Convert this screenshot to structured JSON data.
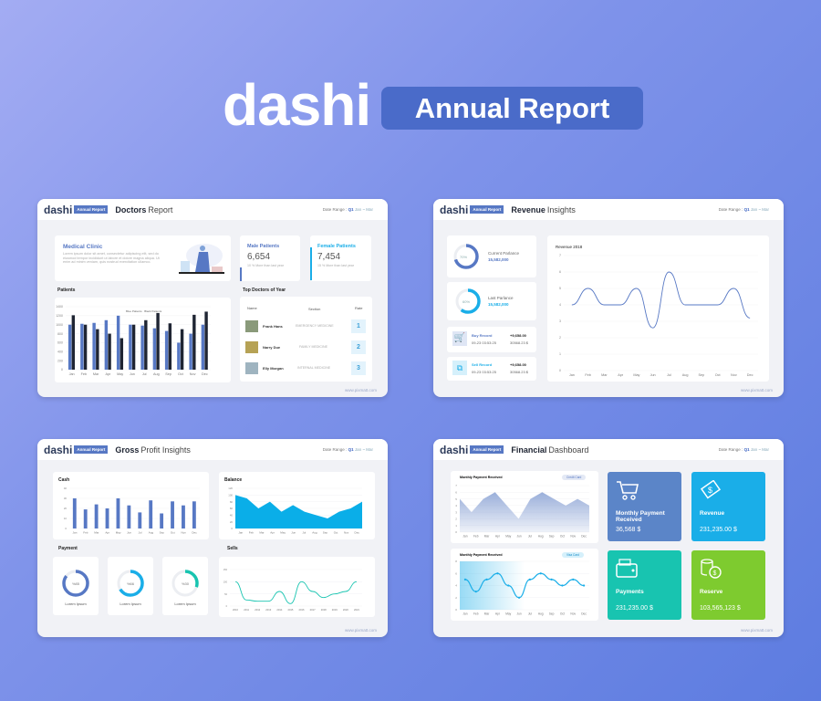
{
  "header": {
    "logo": "dashi",
    "badge": "Annual Report"
  },
  "common": {
    "logo": "dashi",
    "badge": "Annual Report",
    "date_label": "Date Range :",
    "date_q": "Q1",
    "date_span": "Jan ~ Mar",
    "footer": "www.pixmatt.com"
  },
  "colors": {
    "primary": "#5778c4",
    "cyan": "#1aaee8",
    "teal": "#18c4b0",
    "green": "#7ecb2f",
    "dark": "#1f2533"
  },
  "doctors": {
    "title_bold": "Doctors",
    "title_light": "Report",
    "clinic": {
      "title": "Medical Clinic",
      "text": "Lorem ipsum dolor sit amet, consectetur adipiscing elit, sed do eiusmod tempor incididunt ut labore et dolore magna aliqua. Ut enim ad minim veniam, quis nostrud exercitation ullamco."
    },
    "male": {
      "title": "Male Patients",
      "value": "6,654",
      "note": "10 % More than last year"
    },
    "female": {
      "title": "Female Patients",
      "value": "7,454",
      "note": "15 % More than last year"
    },
    "patients_label": "Patients",
    "top_label": "Top Doctors of Year",
    "table_headers": [
      "Name",
      "Section",
      "Rate"
    ],
    "rows": [
      {
        "name": "Frank Hans",
        "section": "EMERGENCY MEDICINE",
        "rate": "1"
      },
      {
        "name": "Narry Due",
        "section": "FAMILY MEDICINE",
        "rate": "2"
      },
      {
        "name": "Elly Morgan",
        "section": "INTERNAL MEDICINE",
        "rate": "3"
      }
    ]
  },
  "revenue": {
    "title_bold": "Revenue",
    "title_light": "Insights",
    "current": {
      "pct": "70%",
      "fraction": 0.7,
      "label": "Current Parlance",
      "value": "15,582,000"
    },
    "last": {
      "pct": "60%",
      "fraction": 0.6,
      "label": "Last Parlance",
      "value": "15,582,000"
    },
    "buy": {
      "label": "Buy Record",
      "date": "09-23 03:53:25",
      "amount": "+9,658.00",
      "total": "30568.23 $"
    },
    "sell": {
      "label": "Sell Record",
      "date": "09-23 03:53:25",
      "amount": "+9,658.00",
      "total": "30568.23 $"
    }
  },
  "gross": {
    "title_bold": "Gross",
    "title_light": "Profit Insights",
    "cash_label": "Cash",
    "balance_label": "Balance",
    "payment_label": "Payment",
    "sells_label": "Sells",
    "payments": [
      {
        "pct": "%85",
        "fraction": 0.85,
        "label": "Lorem Ipsum",
        "color": "#5778c4"
      },
      {
        "pct": "%66",
        "fraction": 0.66,
        "label": "Lorem Ipsum",
        "color": "#1aaee8"
      },
      {
        "pct": "%30",
        "fraction": 0.3,
        "label": "Lorem Ipsum",
        "color": "#18c4b0"
      }
    ]
  },
  "financial": {
    "title_bold": "Financial",
    "title_light": "Dashboard",
    "chart1_title": "Monthly Payment Received",
    "chart1_legend": "Credit Card",
    "chart2_title": "Monthly Payment Received",
    "chart2_legend": "Visa Card",
    "tiles": [
      {
        "title": "Monthly Payment Received",
        "value": "36,568 $",
        "icon": "cart-icon"
      },
      {
        "title": "Revenue",
        "value": "231,235.00 $",
        "icon": "money-bill-icon"
      },
      {
        "title": "Payments",
        "value": "231,235.00 $",
        "icon": "wallet-icon"
      },
      {
        "title": "Reserve",
        "value": "103,565,123 $",
        "icon": "coins-icon"
      }
    ]
  },
  "chart_data": [
    {
      "id": "patients",
      "type": "bar",
      "categories": [
        "Jan",
        "Feb",
        "Mar",
        "Apr",
        "May",
        "Jun",
        "Jul",
        "Aug",
        "Sep",
        "Oct",
        "Nov",
        "Dec"
      ],
      "ylim": [
        0,
        1400
      ],
      "yticks": [
        0,
        200,
        400,
        600,
        800,
        1000,
        1200,
        1400
      ],
      "legend": [
        "Blue Patients",
        "Black Patients"
      ],
      "series": [
        {
          "color": "#5778c4",
          "values": [
            1000,
            1020,
            1040,
            1100,
            1200,
            1000,
            980,
            920,
            860,
            600,
            800,
            1000
          ]
        },
        {
          "color": "#1f2533",
          "values": [
            1210,
            1000,
            900,
            800,
            700,
            1000,
            1100,
            1260,
            1030,
            900,
            1220,
            1290
          ]
        }
      ]
    },
    {
      "id": "revenue",
      "type": "line",
      "title": "Revenue 2018",
      "categories": [
        "Jan",
        "Feb",
        "Mar",
        "Apr",
        "May",
        "Jun",
        "Jul",
        "Aug",
        "Sep",
        "Oct",
        "Nov",
        "Dec"
      ],
      "ylim": [
        0,
        7
      ],
      "yticks": [
        0,
        1,
        2,
        3,
        4,
        5,
        6,
        7
      ],
      "series": [
        {
          "color": "#5778c4",
          "values": [
            4,
            5,
            4,
            4,
            5,
            2.6,
            6,
            4,
            4,
            4,
            5,
            3.2
          ]
        }
      ]
    },
    {
      "id": "cash",
      "type": "bar",
      "categories": [
        "Jan",
        "Feb",
        "Mar",
        "Apr",
        "May",
        "Jun",
        "Jul",
        "Aug",
        "Sep",
        "Oct",
        "Nov",
        "Dec"
      ],
      "ylim": [
        0,
        40
      ],
      "yticks": [
        0,
        10,
        20,
        30,
        40
      ],
      "series": [
        {
          "color": "#5778c4",
          "values": [
            30,
            19,
            24,
            20,
            30,
            23,
            16,
            28,
            15,
            27,
            23,
            27
          ]
        }
      ]
    },
    {
      "id": "balance",
      "type": "area",
      "categories": [
        "Jan",
        "Feb",
        "Mar",
        "Apr",
        "May",
        "Jun",
        "Jul",
        "Aug",
        "Sep",
        "Oct",
        "Nov",
        "Dec"
      ],
      "ylim": [
        0,
        120
      ],
      "yticks": [
        0,
        20,
        40,
        60,
        80,
        100,
        120
      ],
      "series": [
        {
          "color": "#0aaee8",
          "values": [
            100,
            90,
            60,
            80,
            50,
            70,
            50,
            40,
            30,
            50,
            60,
            80
          ]
        }
      ]
    },
    {
      "id": "sells",
      "type": "line",
      "categories": [
        "2010",
        "2011",
        "2012",
        "2013",
        "2014",
        "2015",
        "2016",
        "2017",
        "2018",
        "2019",
        "2020",
        "2021"
      ],
      "ylim": [
        0,
        150
      ],
      "yticks": [
        0,
        50,
        100,
        150
      ],
      "series": [
        {
          "color": "#18c4b0",
          "values": [
            100,
            25,
            20,
            20,
            60,
            10,
            100,
            60,
            35,
            50,
            60,
            100
          ]
        }
      ]
    },
    {
      "id": "fin1",
      "type": "area",
      "categories": [
        "Jan",
        "Feb",
        "Mar",
        "Apr",
        "May",
        "Jun",
        "Jul",
        "Aug",
        "Sep",
        "Oct",
        "Nov",
        "Dec"
      ],
      "ylim": [
        0,
        7
      ],
      "yticks": [
        0,
        1,
        2,
        3,
        4,
        5,
        6,
        7
      ],
      "series": [
        {
          "color": "#8fa6d6",
          "values": [
            5,
            3,
            5,
            6,
            4,
            2,
            5,
            6,
            5,
            4,
            5,
            4
          ]
        }
      ]
    },
    {
      "id": "fin2",
      "type": "line",
      "categories": [
        "Jan",
        "Feb",
        "Mar",
        "Apr",
        "May",
        "Jun",
        "Jul",
        "Aug",
        "Sep",
        "Oct",
        "Nov",
        "Dec"
      ],
      "ylim": [
        0,
        8
      ],
      "yticks": [
        0,
        2,
        4,
        6,
        8
      ],
      "markers": true,
      "series": [
        {
          "color": "#1aaee8",
          "values": [
            5,
            3,
            5,
            6,
            4,
            2,
            5,
            6,
            5,
            4,
            5,
            4
          ]
        }
      ]
    }
  ]
}
